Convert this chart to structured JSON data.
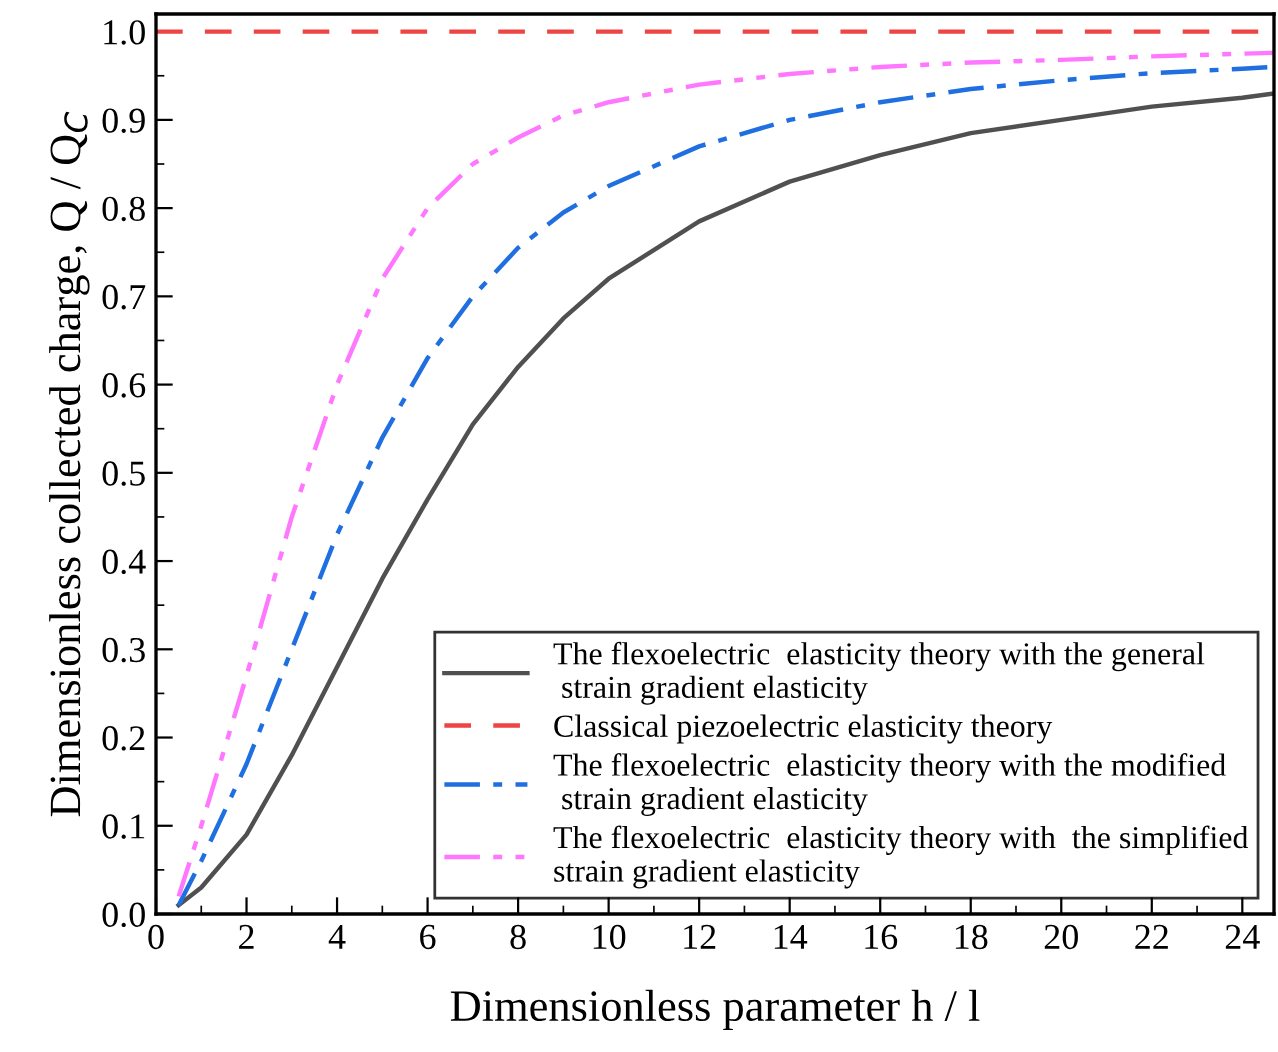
{
  "chart_data": {
    "type": "line",
    "xlabel": "Dimensionless parameter h / l",
    "ylabel": "Dimensionless collected charge, Q / Q$_{C}$",
    "xlim": [
      0,
      24.7
    ],
    "xticks": [
      0,
      2,
      4,
      6,
      8,
      10,
      12,
      14,
      16,
      18,
      20,
      22,
      24
    ],
    "ylim": [
      0,
      1.02
    ],
    "yticks": [
      {
        "value": 0,
        "label": "0.0"
      },
      0.1,
      0.2,
      0.3,
      0.4,
      0.5,
      0.6,
      0.7,
      0.8,
      0.9,
      {
        "value": 1,
        "label": "1.0"
      }
    ],
    "grid": false,
    "legend": "bottom right",
    "series": [
      {
        "name": "The flexoelectric  elasticity theory with the general\n strain gradient elasticity",
        "color": "#505050",
        "line_style": "solid",
        "x": [
          0.5,
          1,
          2,
          3,
          4,
          5,
          6,
          7,
          8,
          9,
          10,
          12,
          14,
          16,
          18,
          20,
          22,
          24,
          24.7
        ],
        "values": [
          0.01,
          0.03,
          0.09,
          0.18,
          0.28,
          0.38,
          0.47,
          0.555,
          0.62,
          0.675,
          0.72,
          0.785,
          0.83,
          0.86,
          0.885,
          0.9,
          0.915,
          0.925,
          0.93
        ]
      },
      {
        "name": "Classical piezoelectric elasticity theory",
        "color": "#ee4444",
        "line_style": "dashed",
        "x": [
          0,
          24.7
        ],
        "values": [
          1,
          1
        ]
      },
      {
        "name": "The flexoelectric  elasticity theory with the modified\n strain gradient elasticity",
        "color": "#1f6fe0",
        "line_style": "dashdot",
        "x": [
          0.5,
          1,
          2,
          3,
          4,
          5,
          6,
          7,
          8,
          9,
          10,
          12,
          14,
          16,
          18,
          20,
          22,
          24,
          24.7
        ],
        "values": [
          0.01,
          0.06,
          0.17,
          0.3,
          0.43,
          0.54,
          0.63,
          0.7,
          0.755,
          0.795,
          0.825,
          0.87,
          0.9,
          0.92,
          0.935,
          0.945,
          0.953,
          0.958,
          0.96
        ]
      },
      {
        "name": "The flexoelectric  elasticity theory with  the simplified\nstrain gradient elasticity",
        "color": "#ff77ff",
        "line_style": "dashdotdot",
        "x": [
          0.5,
          1,
          2,
          3,
          4,
          5,
          6,
          7,
          8,
          9,
          10,
          12,
          14,
          16,
          18,
          20,
          22,
          24,
          24.7
        ],
        "values": [
          0.02,
          0.1,
          0.27,
          0.45,
          0.6,
          0.72,
          0.8,
          0.85,
          0.88,
          0.905,
          0.92,
          0.94,
          0.952,
          0.96,
          0.965,
          0.968,
          0.972,
          0.975,
          0.976
        ]
      }
    ]
  }
}
